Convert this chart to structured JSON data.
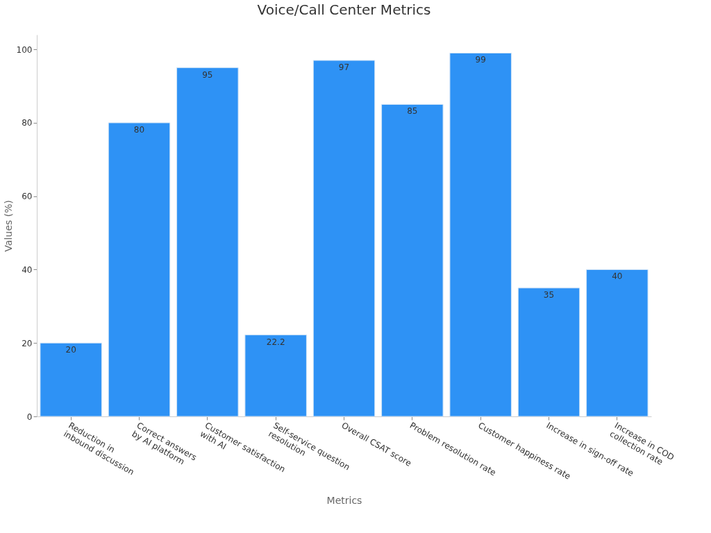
{
  "chart_data": {
    "type": "bar",
    "title": "Voice/Call Center Metrics",
    "xlabel": "Metrics",
    "ylabel": "Values (%)",
    "categories": [
      "Reduction in\ninbound discussion",
      "Correct answers\nby AI platform",
      "Customer satisfaction\nwith AI",
      "Self-service question\nresolution",
      "Overall CSAT score",
      "Problem resolution rate",
      "Customer happiness rate",
      "Increase in sign-off rate",
      "Increase in COD\ncollection rate"
    ],
    "values": [
      20,
      80,
      95,
      22.2,
      97,
      85,
      99,
      35,
      40
    ],
    "color": "#2e92f5",
    "ylim": [
      0,
      104
    ],
    "yticks": [
      0,
      20,
      40,
      60,
      80,
      100
    ],
    "data_labels": true,
    "grid": false
  }
}
